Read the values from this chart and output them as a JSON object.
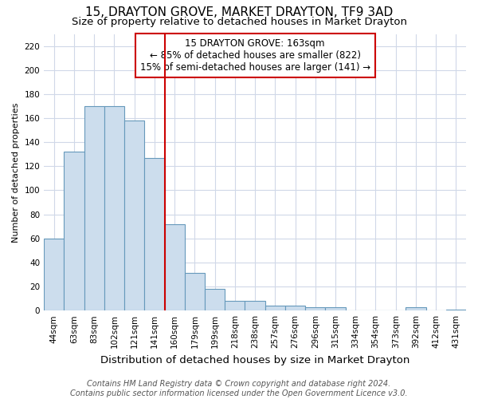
{
  "title": "15, DRAYTON GROVE, MARKET DRAYTON, TF9 3AD",
  "subtitle": "Size of property relative to detached houses in Market Drayton",
  "xlabel": "Distribution of detached houses by size in Market Drayton",
  "ylabel": "Number of detached properties",
  "categories": [
    "44sqm",
    "63sqm",
    "83sqm",
    "102sqm",
    "121sqm",
    "141sqm",
    "160sqm",
    "179sqm",
    "199sqm",
    "218sqm",
    "238sqm",
    "257sqm",
    "276sqm",
    "296sqm",
    "315sqm",
    "334sqm",
    "354sqm",
    "373sqm",
    "392sqm",
    "412sqm",
    "431sqm"
  ],
  "values": [
    60,
    132,
    170,
    170,
    158,
    127,
    72,
    31,
    18,
    8,
    8,
    4,
    4,
    3,
    3,
    0,
    0,
    0,
    3,
    0,
    1
  ],
  "bar_color": "#ccdded",
  "bar_edge_color": "#6699bb",
  "vline_index": 6,
  "vline_color": "#cc0000",
  "annotation_text": "15 DRAYTON GROVE: 163sqm\n← 85% of detached houses are smaller (822)\n15% of semi-detached houses are larger (141) →",
  "annotation_box_facecolor": "#ffffff",
  "annotation_box_edgecolor": "#cc0000",
  "ylim": [
    0,
    230
  ],
  "yticks": [
    0,
    20,
    40,
    60,
    80,
    100,
    120,
    140,
    160,
    180,
    200,
    220
  ],
  "background_color": "#ffffff",
  "plot_background_color": "#ffffff",
  "grid_color": "#d0d8e8",
  "title_fontsize": 11,
  "subtitle_fontsize": 9.5,
  "ylabel_fontsize": 8,
  "xlabel_fontsize": 9.5,
  "tick_fontsize": 7.5,
  "annotation_fontsize": 8.5,
  "footer_fontsize": 7,
  "footer": "Contains HM Land Registry data © Crown copyright and database right 2024.\nContains public sector information licensed under the Open Government Licence v3.0."
}
